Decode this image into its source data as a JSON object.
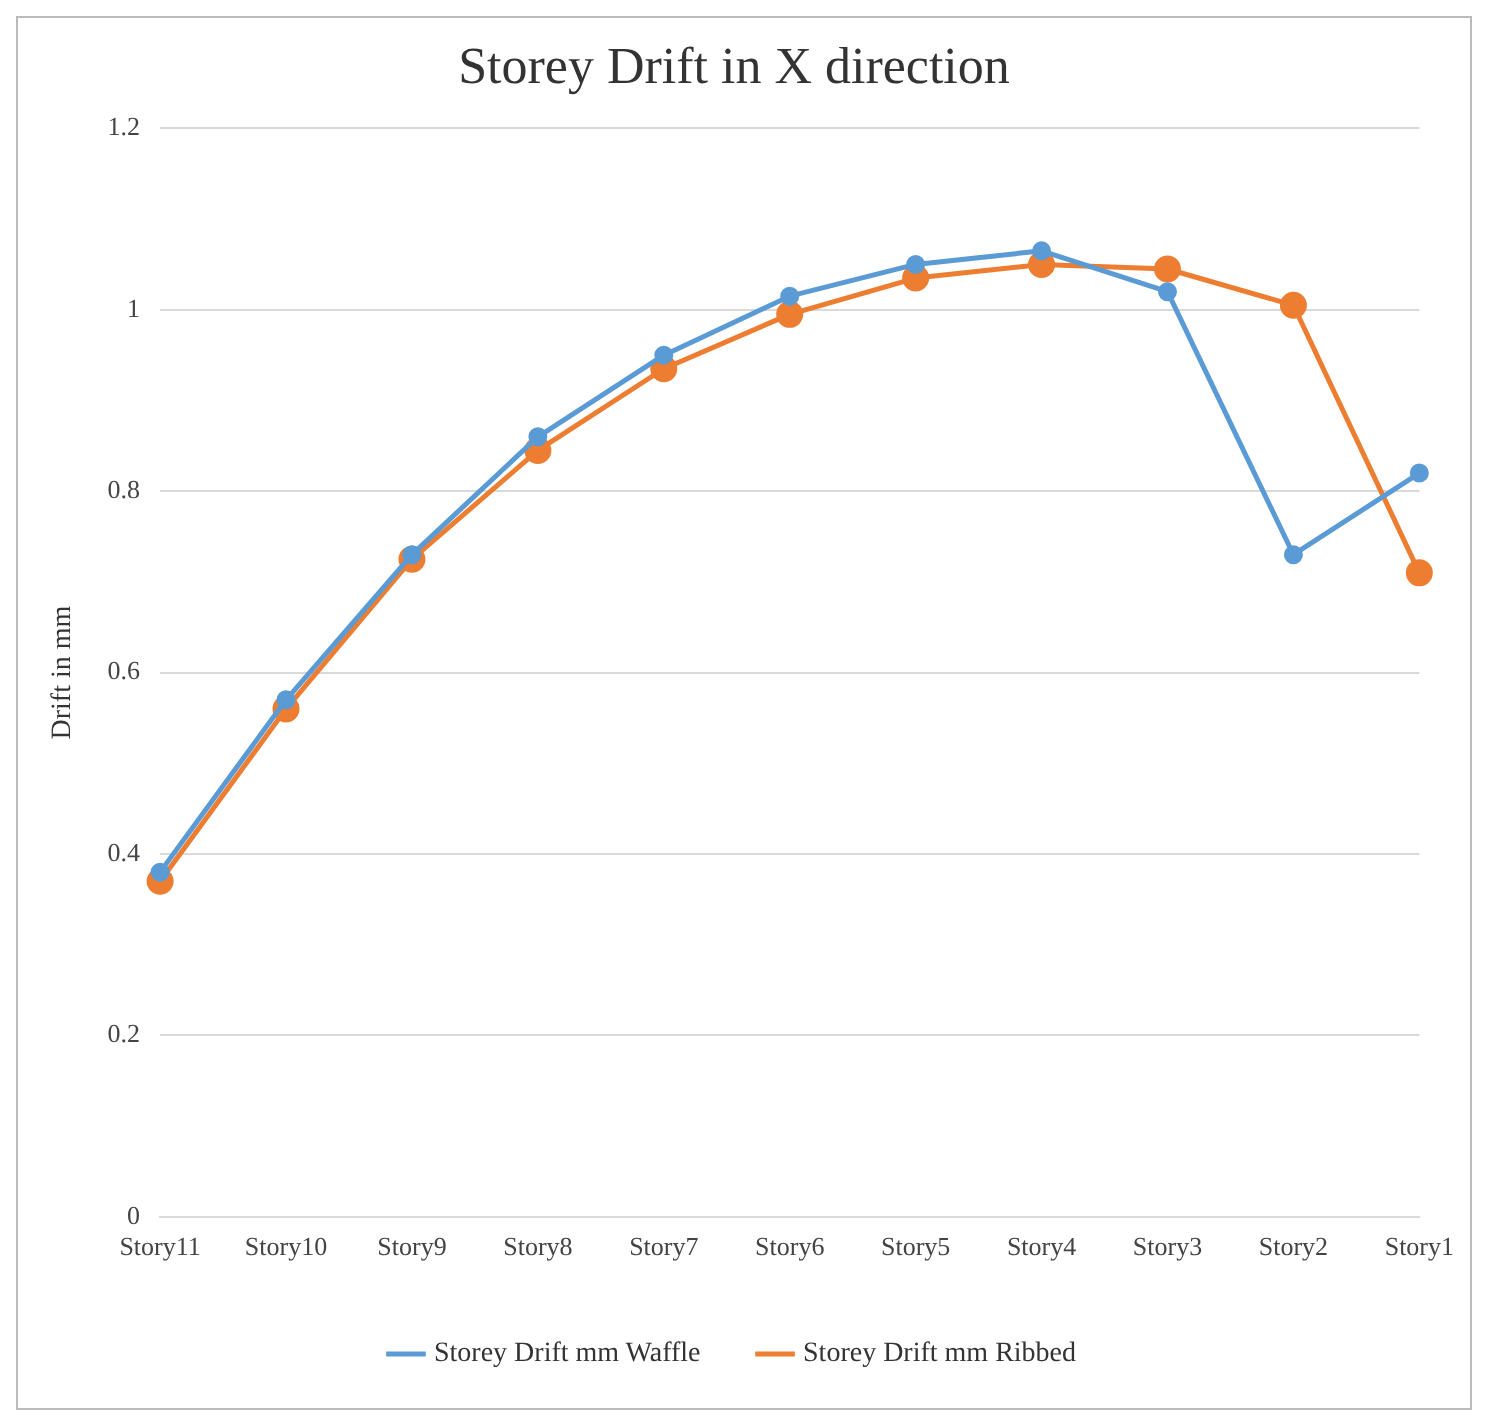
{
  "chart_data": {
    "type": "line",
    "title": "Storey Drift in X direction",
    "ylabel": "Drift in mm",
    "categories": [
      "Story11",
      "Story10",
      "Story9",
      "Story8",
      "Story7",
      "Story6",
      "Story5",
      "Story4",
      "Story3",
      "Story2",
      "Story1"
    ],
    "series": [
      {
        "name": "Storey Drift mm Waffle",
        "color": "#5b9bd5",
        "values": [
          0.38,
          0.57,
          0.73,
          0.86,
          0.95,
          1.015,
          1.05,
          1.065,
          1.02,
          0.73,
          0.82
        ]
      },
      {
        "name": "Storey Drift mm Ribbed",
        "color": "#ed7d31",
        "values": [
          0.37,
          0.56,
          0.725,
          0.845,
          0.935,
          0.995,
          1.035,
          1.05,
          1.045,
          1.005,
          0.71
        ]
      }
    ],
    "ylim": [
      0,
      1.2
    ],
    "yticks": [
      0,
      0.2,
      0.4,
      0.6,
      0.8,
      1,
      1.2
    ],
    "grid": "y",
    "legend": "bottom",
    "marker": "circle",
    "line_style": "solid"
  }
}
